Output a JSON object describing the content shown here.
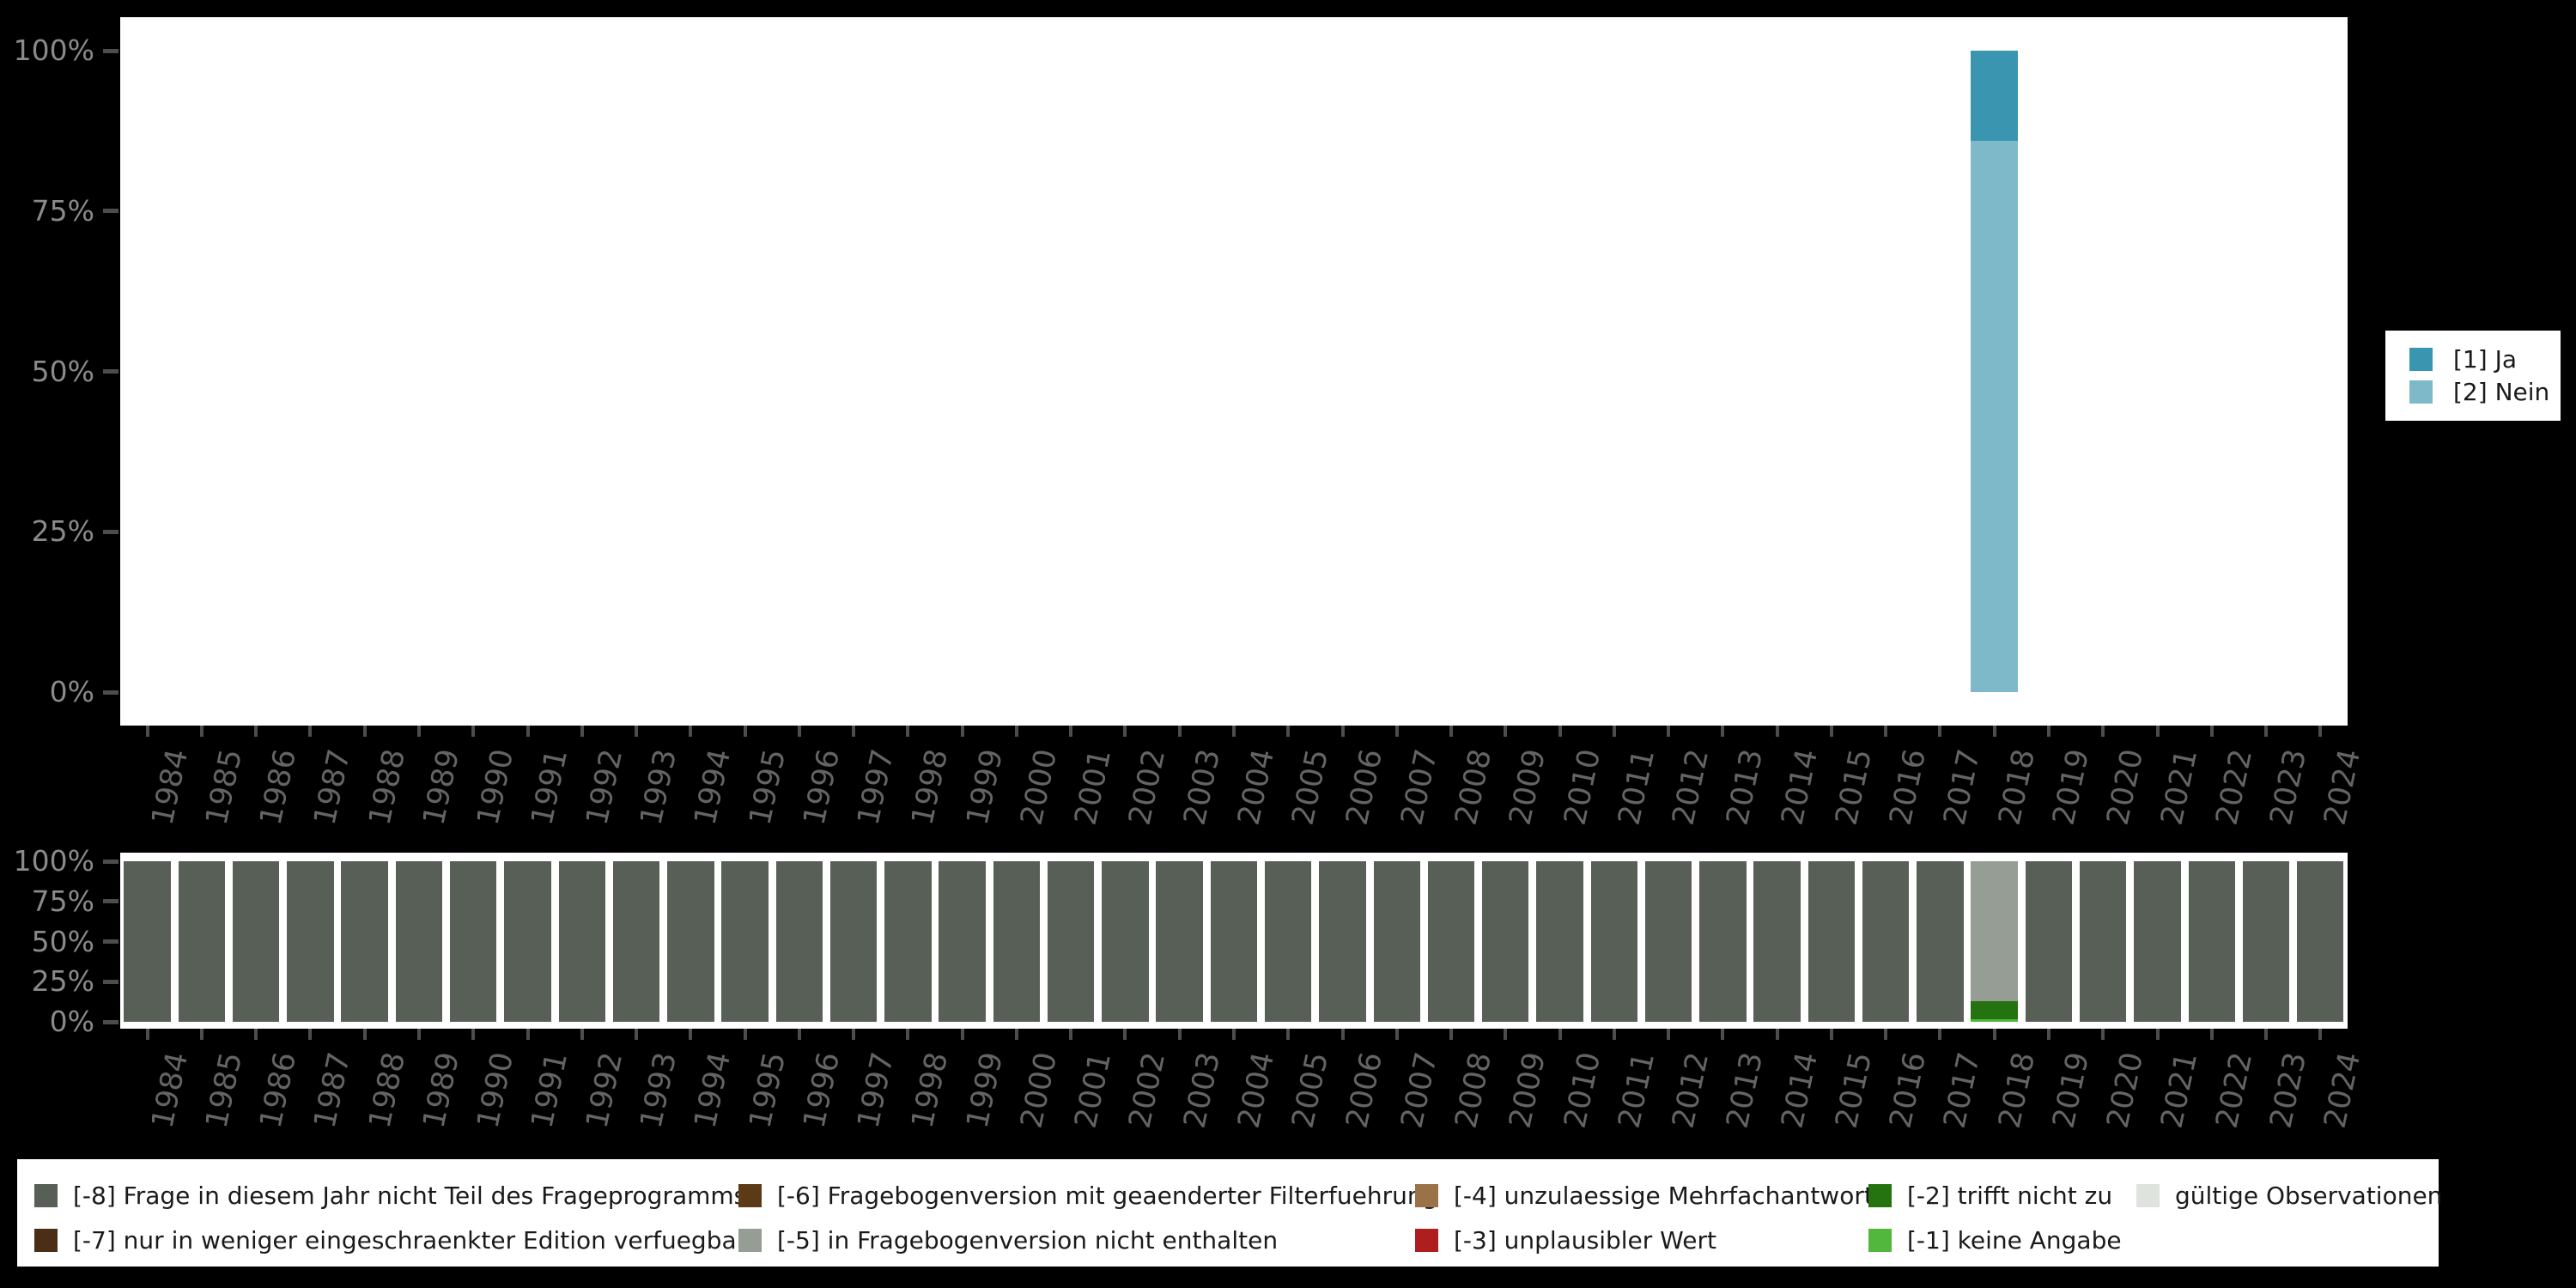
{
  "colors": {
    "background": "#000000",
    "plot_background": "#ffffff",
    "axis_tick": "#4d4d4d",
    "y_axis_label": "#8a8a8a",
    "x_axis_label": "#646464",
    "legend_background": "#ffffff",
    "legend_text": "#1a1a1a"
  },
  "top_legend": {
    "items": [
      {
        "label": "[1] Ja",
        "color": "#3A96B0"
      },
      {
        "label": "[2] Nein",
        "color": "#7DB9C8"
      }
    ]
  },
  "missing_legend": {
    "columns": [
      [
        {
          "label": "[-8] Frage in diesem Jahr nicht Teil des Frageprogramms",
          "color": "#575F57"
        },
        {
          "label": "[-7] nur in weniger eingeschraenkter Edition verfuegbar",
          "color": "#4A2F16"
        }
      ],
      [
        {
          "label": "[-6] Fragebogenversion mit geaenderter Filterfuehrung",
          "color": "#5C3A17"
        },
        {
          "label": "[-5] in Fragebogenversion nicht enthalten",
          "color": "#969D94"
        }
      ],
      [
        {
          "label": "[-4] unzulaessige Mehrfachantwort",
          "color": "#9A7248"
        },
        {
          "label": "[-3] unplausibler Wert",
          "color": "#AE1E1E"
        }
      ],
      [
        {
          "label": "[-2] trifft nicht zu",
          "color": "#257310"
        },
        {
          "label": "[-1] keine Angabe",
          "color": "#52B83D"
        }
      ],
      [
        {
          "label": "gültige Observationen",
          "color": "#DFE3DD"
        }
      ]
    ]
  },
  "chart_data": [
    {
      "type": "bar",
      "stacked": true,
      "title": "",
      "xlabel": "",
      "ylabel": "",
      "ylim": [
        0,
        100
      ],
      "grid": false,
      "legend_position": "right",
      "y_ticks": [
        "100%",
        "75%",
        "50%",
        "25%",
        "0%"
      ],
      "categories": [
        1984,
        1985,
        1986,
        1987,
        1988,
        1989,
        1990,
        1991,
        1992,
        1993,
        1994,
        1995,
        1996,
        1997,
        1998,
        1999,
        2000,
        2001,
        2002,
        2003,
        2004,
        2005,
        2006,
        2007,
        2008,
        2009,
        2010,
        2011,
        2012,
        2013,
        2014,
        2015,
        2016,
        2017,
        2018,
        2019,
        2020,
        2021,
        2022,
        2023,
        2024
      ],
      "series": [
        {
          "name": "[2] Nein",
          "color": "#7DB9C8",
          "values": [
            null,
            null,
            null,
            null,
            null,
            null,
            null,
            null,
            null,
            null,
            null,
            null,
            null,
            null,
            null,
            null,
            null,
            null,
            null,
            null,
            null,
            null,
            null,
            null,
            null,
            null,
            null,
            null,
            null,
            null,
            null,
            null,
            null,
            null,
            86,
            null,
            null,
            null,
            null,
            null,
            null
          ]
        },
        {
          "name": "[1] Ja",
          "color": "#3A96B0",
          "values": [
            null,
            null,
            null,
            null,
            null,
            null,
            null,
            null,
            null,
            null,
            null,
            null,
            null,
            null,
            null,
            null,
            null,
            null,
            null,
            null,
            null,
            null,
            null,
            null,
            null,
            null,
            null,
            null,
            null,
            null,
            null,
            null,
            null,
            null,
            14,
            null,
            null,
            null,
            null,
            null,
            null
          ]
        }
      ]
    },
    {
      "type": "bar",
      "stacked": true,
      "title": "",
      "xlabel": "",
      "ylabel": "",
      "ylim": [
        0,
        100
      ],
      "grid": false,
      "legend_position": "bottom",
      "y_ticks": [
        "100%",
        "75%",
        "50%",
        "25%",
        "0%"
      ],
      "categories": [
        1984,
        1985,
        1986,
        1987,
        1988,
        1989,
        1990,
        1991,
        1992,
        1993,
        1994,
        1995,
        1996,
        1997,
        1998,
        1999,
        2000,
        2001,
        2002,
        2003,
        2004,
        2005,
        2006,
        2007,
        2008,
        2009,
        2010,
        2011,
        2012,
        2013,
        2014,
        2015,
        2016,
        2017,
        2018,
        2019,
        2020,
        2021,
        2022,
        2023,
        2024
      ],
      "series": [
        {
          "name": "[-1] keine Angabe",
          "color": "#52B83D",
          "values": [
            0,
            0,
            0,
            0,
            0,
            0,
            0,
            0,
            0,
            0,
            0,
            0,
            0,
            0,
            0,
            0,
            0,
            0,
            0,
            0,
            0,
            0,
            0,
            0,
            0,
            0,
            0,
            0,
            0,
            0,
            0,
            0,
            0,
            0,
            1.5,
            0,
            0,
            0,
            0,
            0,
            0
          ]
        },
        {
          "name": "[-2] trifft nicht zu",
          "color": "#257310",
          "values": [
            0,
            0,
            0,
            0,
            0,
            0,
            0,
            0,
            0,
            0,
            0,
            0,
            0,
            0,
            0,
            0,
            0,
            0,
            0,
            0,
            0,
            0,
            0,
            0,
            0,
            0,
            0,
            0,
            0,
            0,
            0,
            0,
            0,
            0,
            11.5,
            0,
            0,
            0,
            0,
            0,
            0
          ]
        },
        {
          "name": "[-5] in Fragebogenversion nicht enthalten",
          "color": "#969D94",
          "values": [
            0,
            0,
            0,
            0,
            0,
            0,
            0,
            0,
            0,
            0,
            0,
            0,
            0,
            0,
            0,
            0,
            0,
            0,
            0,
            0,
            0,
            0,
            0,
            0,
            0,
            0,
            0,
            0,
            0,
            0,
            0,
            0,
            0,
            0,
            87,
            0,
            0,
            0,
            0,
            0,
            0
          ]
        },
        {
          "name": "[-8] Frage in diesem Jahr nicht Teil des Frageprogramms",
          "color": "#575F57",
          "values": [
            100,
            100,
            100,
            100,
            100,
            100,
            100,
            100,
            100,
            100,
            100,
            100,
            100,
            100,
            100,
            100,
            100,
            100,
            100,
            100,
            100,
            100,
            100,
            100,
            100,
            100,
            100,
            100,
            100,
            100,
            100,
            100,
            100,
            100,
            0,
            100,
            100,
            100,
            100,
            100,
            100
          ]
        }
      ]
    }
  ]
}
